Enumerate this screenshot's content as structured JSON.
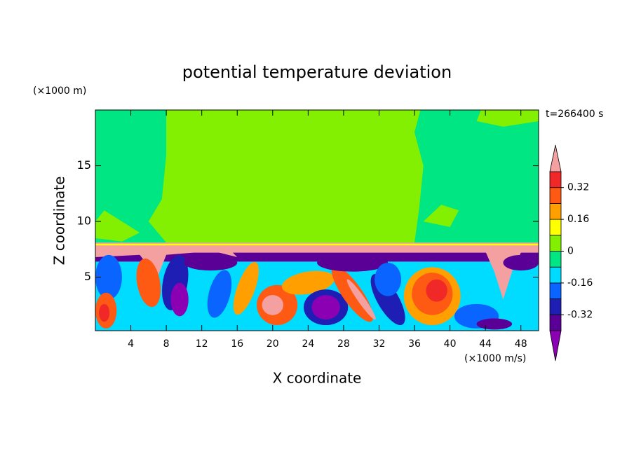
{
  "chart_data": {
    "type": "contour",
    "title": "potential temperature deviation",
    "xlabel": "X coordinate",
    "ylabel": "Z coordinate",
    "x_unit": "(×1000 m/s)",
    "y_unit": "(×1000 m)",
    "annotation": "t=266400 s",
    "xlim": [
      0,
      50
    ],
    "ylim": [
      0.2,
      20
    ],
    "xticks": [
      4,
      8,
      12,
      16,
      20,
      24,
      28,
      32,
      36,
      40,
      44,
      48
    ],
    "yticks": [
      5,
      10,
      15
    ],
    "levels": [
      -0.4,
      -0.32,
      -0.24,
      -0.16,
      -0.08,
      0,
      0.08,
      0.16,
      0.24,
      0.32,
      0.4
    ],
    "colors": [
      "#8c00b4",
      "#5a0096",
      "#1e1eb4",
      "#0a64ff",
      "#00dcff",
      "#00e682",
      "#82f000",
      "#ffff00",
      "#ffa000",
      "#ff5a14",
      "#f02828",
      "#f5a0a0"
    ],
    "colorbar_ticks": [
      -0.32,
      -0.16,
      0,
      0.16,
      0.32
    ]
  }
}
